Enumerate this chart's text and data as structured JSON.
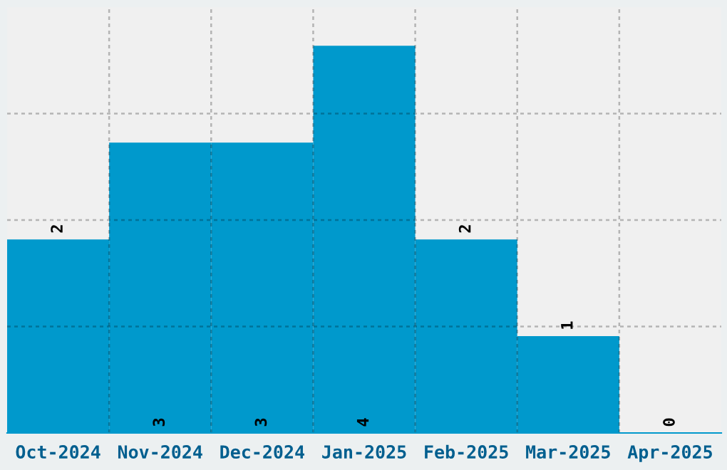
{
  "chart_data": {
    "type": "bar",
    "categories": [
      "Oct-2024",
      "Nov-2024",
      "Dec-2024",
      "Jan-2025",
      "Feb-2025",
      "Mar-2025",
      "Apr-2025"
    ],
    "values": [
      2,
      3,
      3,
      4,
      2,
      1,
      0
    ],
    "color": "#0099cc",
    "ylim": [
      0,
      4.4
    ],
    "yticks": [
      {
        "value": 1.1,
        "label": null
      },
      {
        "value": 2.2,
        "label": null
      },
      {
        "value": 3.3,
        "label": null
      }
    ],
    "tick_labels": "x",
    "grid": true,
    "data_labels": true
  }
}
